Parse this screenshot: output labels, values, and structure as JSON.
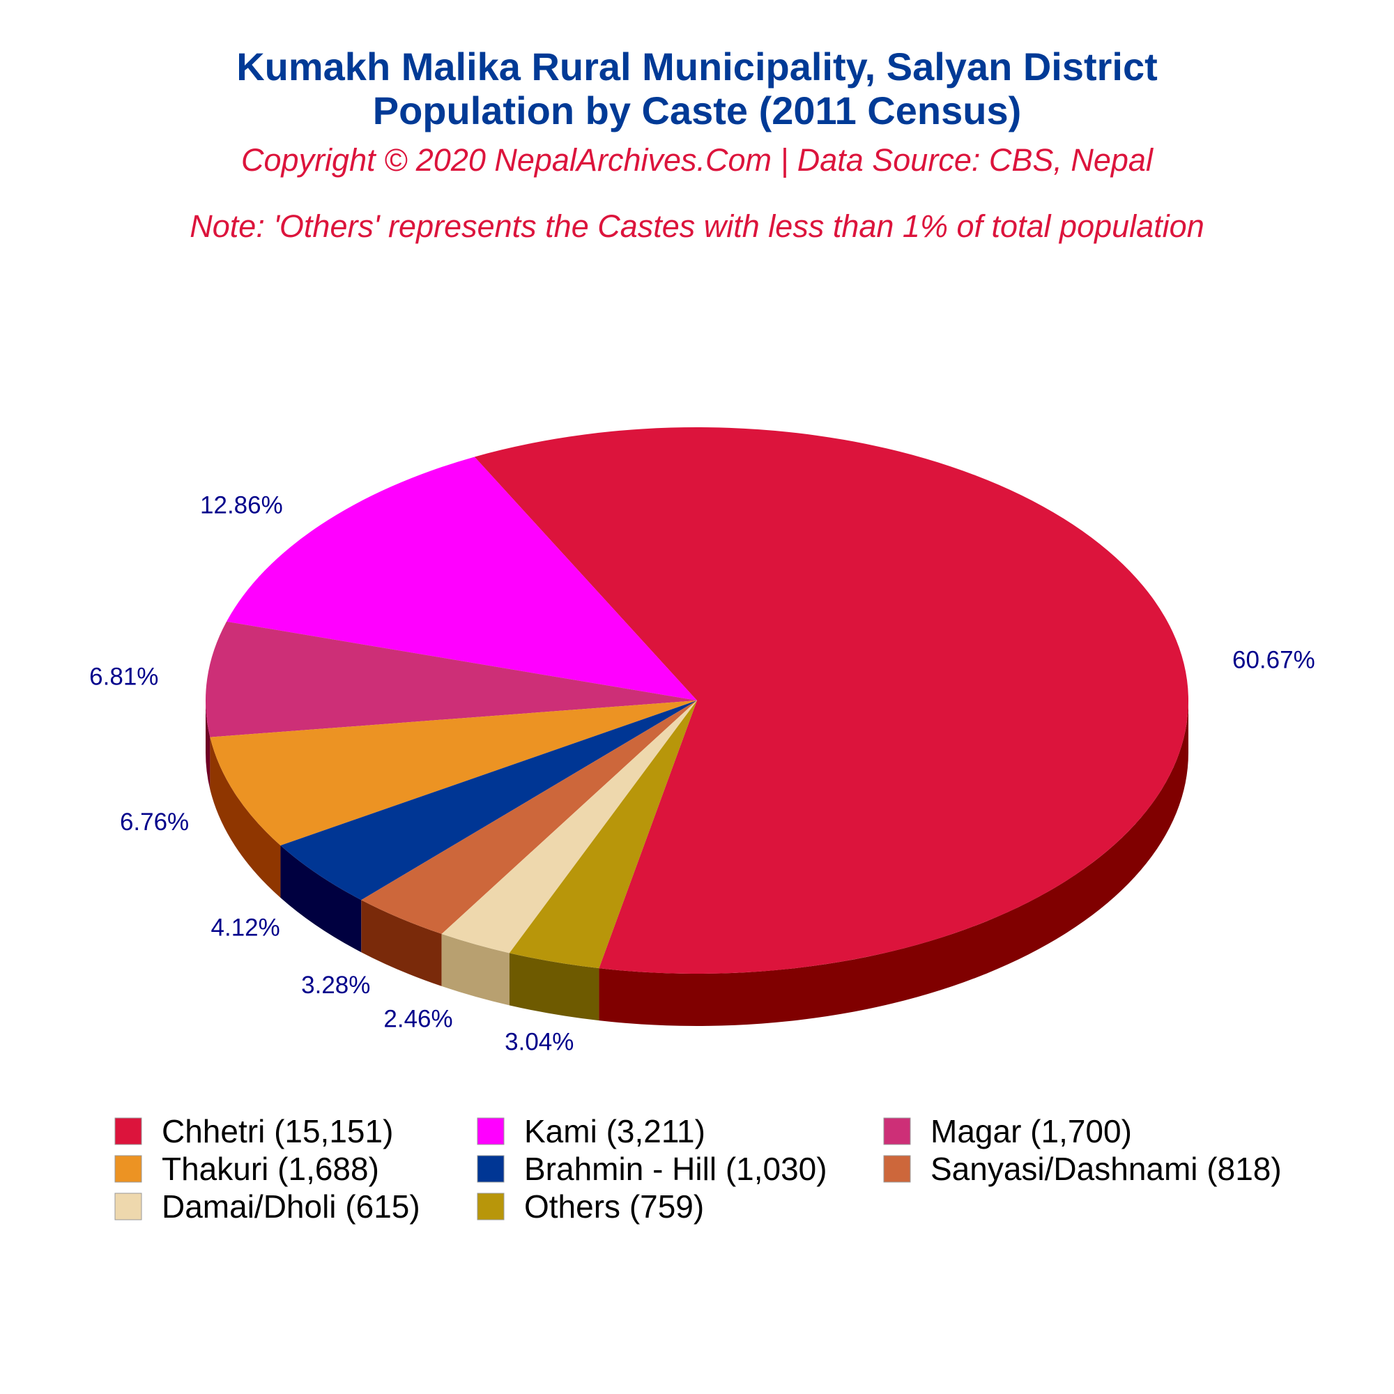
{
  "chart_data": {
    "type": "pie",
    "title_line1": "Kumakh Malika Rural Municipality, Salyan District",
    "title_line2": "Population by Caste (2011 Census)",
    "subtitle": "Copyright © 2020 NepalArchives.Com | Data Source: CBS, Nepal",
    "note": "Note: 'Others' represents the Castes with less than 1% of total population",
    "slices": [
      {
        "name": "Chhetri",
        "value": 15151,
        "percent_label": "60.67%",
        "legend_label": "Chhetri (15,151)",
        "color": "#DC143C",
        "side_color": "#800000"
      },
      {
        "name": "Kami",
        "value": 3211,
        "percent_label": "12.86%",
        "legend_label": "Kami (3,211)",
        "color": "#FF00FF",
        "side_color": "#A600A6"
      },
      {
        "name": "Magar",
        "value": 1700,
        "percent_label": "6.81%",
        "legend_label": "Magar (1,700)",
        "color": "#CD2F77",
        "side_color": "#6E0024"
      },
      {
        "name": "Thakuri",
        "value": 1688,
        "percent_label": "6.76%",
        "legend_label": "Thakuri (1,688)",
        "color": "#EC9323",
        "side_color": "#8F3600"
      },
      {
        "name": "Brahmin - Hill",
        "value": 1030,
        "percent_label": "4.12%",
        "legend_label": "Brahmin - Hill (1,030)",
        "color": "#003694",
        "side_color": "#000040"
      },
      {
        "name": "Sanyasi/Dashnami",
        "value": 818,
        "percent_label": "3.28%",
        "legend_label": "Sanyasi/Dashnami (818)",
        "color": "#CD673B",
        "side_color": "#7A2A0A"
      },
      {
        "name": "Damai/Dholi",
        "value": 615,
        "percent_label": "2.46%",
        "legend_label": "Damai/Dholi (615)",
        "color": "#EED8AD",
        "side_color": "#B8A070"
      },
      {
        "name": "Others",
        "value": 759,
        "percent_label": "3.04%",
        "legend_label": "Others (759)",
        "color": "#B8960A",
        "side_color": "#6E5A00"
      }
    ],
    "label_color": "#00008B",
    "title_color": "#003A96",
    "subtitle_color": "#DC143C",
    "legend_placement": "bottom"
  }
}
